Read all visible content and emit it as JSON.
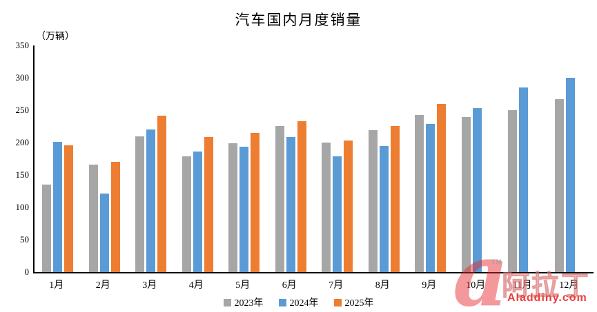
{
  "title": "汽车国内月度销量",
  "unit_label": "（万辆）",
  "watermark": {
    "logo_char": "a",
    "tm": "TM",
    "brand_cn": "阿拉丁",
    "brand_url": "Aladdiny.com",
    "red": "#e8403e"
  },
  "chart_data": {
    "type": "bar",
    "title": "汽车国内月度销量",
    "ylabel": "（万辆）",
    "xlabel": "",
    "ylim": [
      0,
      350
    ],
    "ytick_step": 50,
    "grid": false,
    "legend_position": "bottom",
    "categories": [
      "1月",
      "2月",
      "3月",
      "4月",
      "5月",
      "6月",
      "7月",
      "8月",
      "9月",
      "10月",
      "11月",
      "12月"
    ],
    "series": [
      {
        "name": "2023年",
        "color": "#A6A6A6",
        "values": [
          135,
          166,
          210,
          179,
          199,
          226,
          200,
          219,
          243,
          239,
          250,
          267
        ]
      },
      {
        "name": "2024年",
        "color": "#5B9BD5",
        "values": [
          201,
          121,
          220,
          186,
          194,
          208,
          179,
          195,
          229,
          253,
          285,
          300
        ]
      },
      {
        "name": "2025年",
        "color": "#ED7D31",
        "values": [
          196,
          170,
          242,
          208,
          215,
          233,
          203,
          226,
          260,
          null,
          null,
          null
        ]
      }
    ]
  }
}
